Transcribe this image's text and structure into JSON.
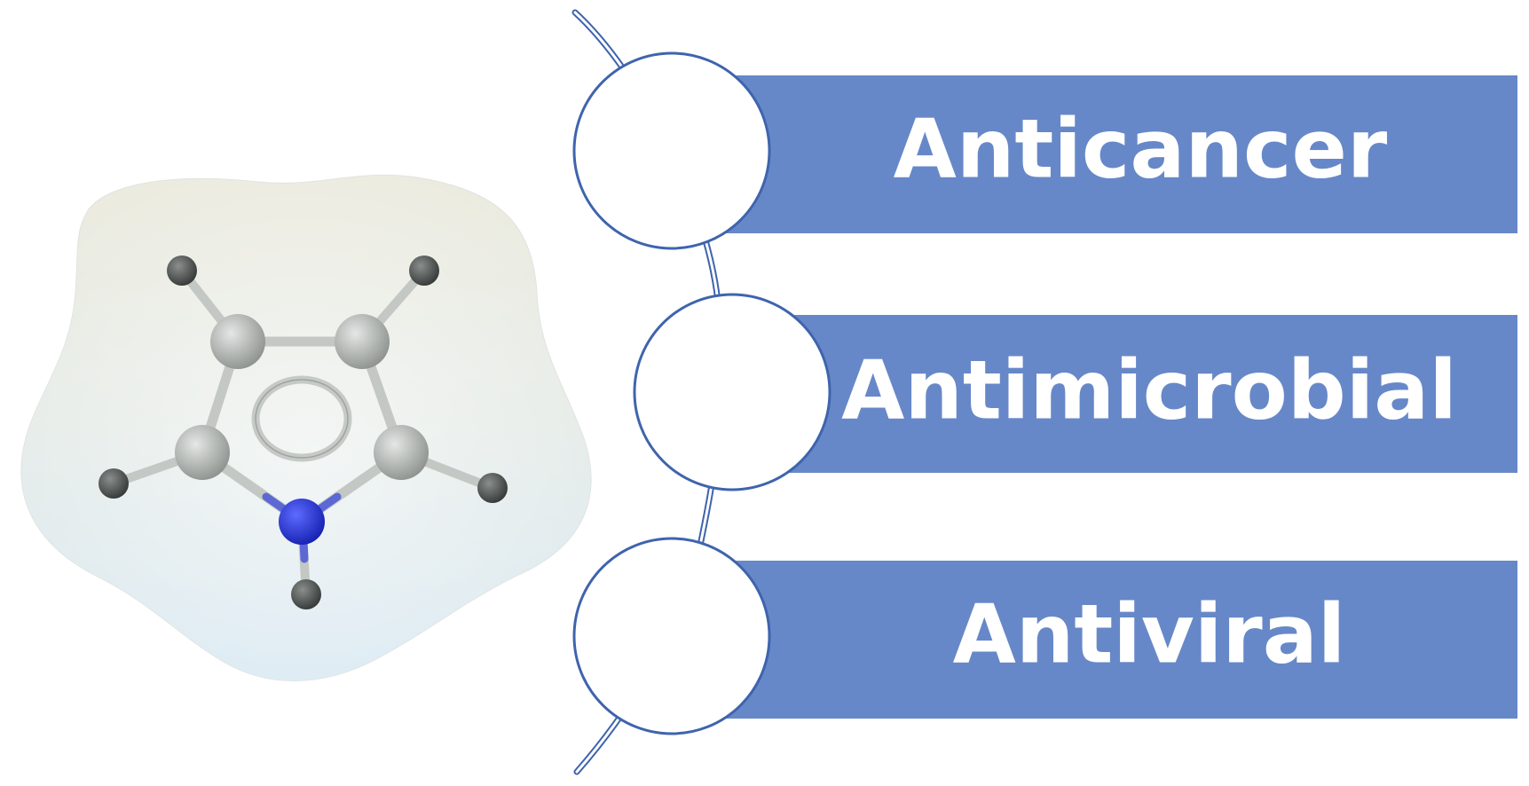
{
  "molecule": {
    "name": "pyrrole-molecule-model",
    "colors": {
      "surface_top": "#ecebdf",
      "surface_bottom": "#d9e9f3",
      "carbon_atom": "#a4a9a6",
      "hydrogen_atom": "#4a4e4d",
      "nitrogen_atom": "#1d2ad6",
      "bond": "#c4c8c4"
    }
  },
  "timeline": {
    "line_color": "#3f64ad"
  },
  "items": [
    {
      "label": "Anticancer",
      "bar_color": "#6788c8"
    },
    {
      "label": "Antimicrobial",
      "bar_color": "#6788c8"
    },
    {
      "label": "Antiviral",
      "bar_color": "#6788c8"
    }
  ]
}
